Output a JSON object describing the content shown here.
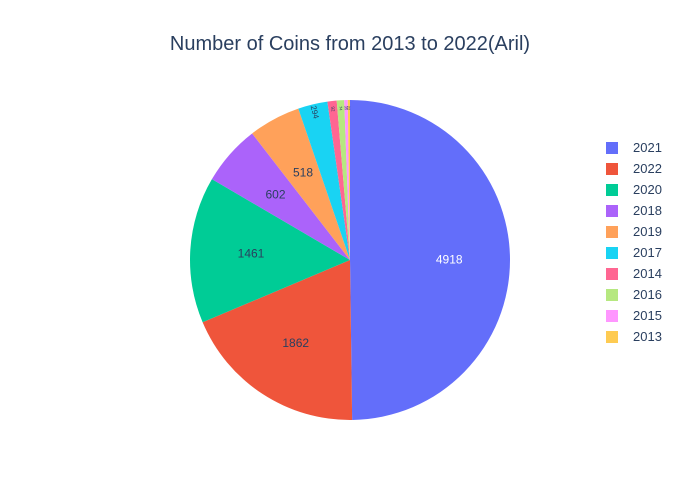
{
  "chart_data": {
    "type": "pie",
    "title": "Number of Coins from 2013 to 2022(Aril)",
    "categories": [
      "2021",
      "2022",
      "2020",
      "2018",
      "2019",
      "2017",
      "2014",
      "2016",
      "2015",
      "2013"
    ],
    "values": [
      4918,
      1862,
      1461,
      602,
      518,
      294,
      92,
      74,
      35,
      22
    ],
    "colors": [
      "#636efa",
      "#ef553b",
      "#00cc96",
      "#ab63fa",
      "#ffa15a",
      "#19d3f3",
      "#ff6692",
      "#b6e880",
      "#ff97ff",
      "#fecb52"
    ],
    "label_colors": [
      "#ffffff",
      "#2a3f5f",
      "#2a3f5f",
      "#2a3f5f",
      "#2a3f5f",
      "#2a3f5f",
      "#2a3f5f",
      "#2a3f5f",
      "#2a3f5f",
      "#2a3f5f"
    ],
    "sort": "descending",
    "direction": "clockwise",
    "start_angle_deg": 90,
    "legend_position": "right",
    "show_values_inside": true
  }
}
